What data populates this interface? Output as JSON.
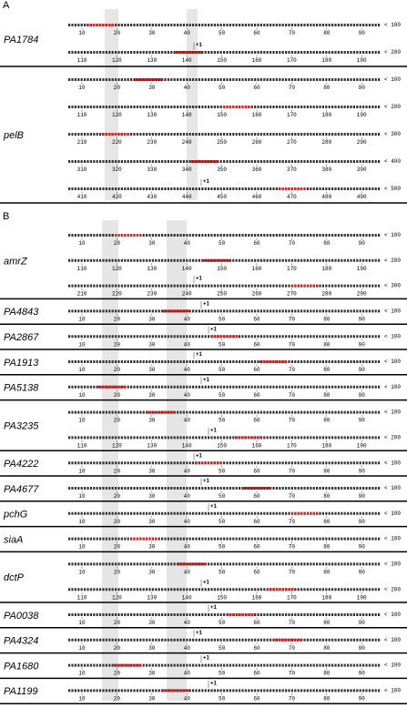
{
  "panels": [
    {
      "letter": "A",
      "genes": [
        {
          "name": "PA1784",
          "tss": "+1",
          "lines": [
            {
              "ruler": [
                10,
                20,
                30,
                40,
                50,
                60,
                70,
                80,
                90
              ],
              "end": "< 100"
            },
            {
              "ruler": [
                110,
                120,
                130,
                140,
                150,
                160,
                170,
                180,
                190
              ],
              "end": "< 200"
            }
          ]
        },
        {
          "name": "pelB",
          "tss": "+1",
          "lines": [
            {
              "ruler": [
                10,
                20,
                30,
                40,
                50,
                60,
                70,
                80,
                90
              ],
              "end": "< 100"
            },
            {
              "ruler": [
                110,
                120,
                130,
                140,
                150,
                160,
                170,
                180,
                190
              ],
              "end": "< 200"
            },
            {
              "ruler": [
                210,
                220,
                230,
                240,
                250,
                260,
                270,
                280,
                290
              ],
              "end": "< 300"
            },
            {
              "ruler": [
                310,
                320,
                330,
                340,
                350,
                360,
                370,
                380,
                390
              ],
              "end": "< 400"
            },
            {
              "ruler": [
                410,
                420,
                430,
                440,
                450,
                460,
                470,
                480,
                490
              ],
              "end": "< 500"
            }
          ]
        }
      ]
    },
    {
      "letter": "B",
      "genes": [
        {
          "name": "amrZ",
          "tss": "+1",
          "lines": [
            {
              "ruler": [
                10,
                20,
                30,
                40,
                50,
                60,
                70,
                80,
                90
              ],
              "end": "< 100"
            },
            {
              "ruler": [
                110,
                120,
                130,
                140,
                150,
                160,
                170,
                180,
                190
              ],
              "end": "< 200"
            },
            {
              "ruler": [
                210,
                220,
                230,
                240,
                250,
                260,
                270,
                280,
                290
              ],
              "end": "< 300"
            }
          ]
        },
        {
          "name": "PA4843",
          "tss": "+1",
          "lines": [
            {
              "ruler": [
                10,
                20,
                30,
                40,
                50,
                60,
                70,
                80,
                90
              ],
              "end": "< 100"
            }
          ]
        },
        {
          "name": "PA2867",
          "tss": "+1",
          "lines": [
            {
              "ruler": [
                10,
                20,
                30,
                40,
                50,
                60,
                70,
                80,
                90
              ],
              "end": "< 100"
            }
          ]
        },
        {
          "name": "PA1913",
          "tss": "+1",
          "lines": [
            {
              "ruler": [
                10,
                20,
                30,
                40,
                50,
                60,
                70,
                80,
                90
              ],
              "end": "< 100"
            }
          ]
        },
        {
          "name": "PA5138",
          "tss": "+1",
          "lines": [
            {
              "ruler": [
                10,
                20,
                30,
                40,
                50,
                60,
                70,
                80,
                90
              ],
              "end": "< 100"
            }
          ]
        },
        {
          "name": "PA3235",
          "tss": "+1",
          "lines": [
            {
              "ruler": [
                10,
                20,
                30,
                40,
                50,
                60,
                70,
                80,
                90
              ],
              "end": "< 100"
            },
            {
              "ruler": [
                110,
                120,
                130,
                140,
                150,
                160,
                170,
                180,
                190
              ],
              "end": "< 200"
            }
          ]
        },
        {
          "name": "PA4222",
          "tss": "+1",
          "lines": [
            {
              "ruler": [
                10,
                20,
                30,
                40,
                50,
                60,
                70,
                80,
                90
              ],
              "end": "< 100"
            }
          ]
        },
        {
          "name": "PA4677",
          "tss": "+1",
          "lines": [
            {
              "ruler": [
                10,
                20,
                30,
                40,
                50,
                60,
                70,
                80,
                90
              ],
              "end": "< 100"
            }
          ]
        },
        {
          "name": "pchG",
          "tss": "+1",
          "lines": [
            {
              "ruler": [
                10,
                20,
                30,
                40,
                50,
                60,
                70,
                80,
                90
              ],
              "end": "< 100"
            }
          ]
        },
        {
          "name": "siaA",
          "lines": [
            {
              "ruler": [
                10,
                20,
                30,
                40,
                50,
                60,
                70,
                80,
                90
              ],
              "end": "< 100"
            }
          ]
        },
        {
          "name": "dctP",
          "tss": "+1",
          "lines": [
            {
              "ruler": [
                10,
                20,
                30,
                40,
                50,
                60,
                70,
                80,
                90
              ],
              "end": "< 100"
            },
            {
              "ruler": [
                110,
                120,
                130,
                140,
                150,
                160,
                170,
                180,
                190
              ],
              "end": "< 200"
            }
          ]
        },
        {
          "name": "PA0038",
          "tss": "+1",
          "lines": [
            {
              "ruler": [
                10,
                20,
                30,
                40,
                50,
                60,
                70,
                80,
                90
              ],
              "end": "< 100"
            }
          ]
        },
        {
          "name": "PA4324",
          "tss": "+1",
          "lines": [
            {
              "ruler": [
                10,
                20,
                30,
                40,
                50,
                60,
                70,
                80,
                90
              ],
              "end": "< 100"
            }
          ]
        },
        {
          "name": "PA1680",
          "tss": "+1",
          "lines": [
            {
              "ruler": [
                10,
                20,
                30,
                40,
                50,
                60,
                70,
                80,
                90
              ],
              "end": "< 100"
            }
          ]
        },
        {
          "name": "PA1199",
          "tss": "+1",
          "lines": [
            {
              "ruler": [
                10,
                20,
                30,
                40,
                50,
                60,
                70,
                80,
                90
              ],
              "end": "< 100"
            }
          ]
        }
      ]
    }
  ]
}
